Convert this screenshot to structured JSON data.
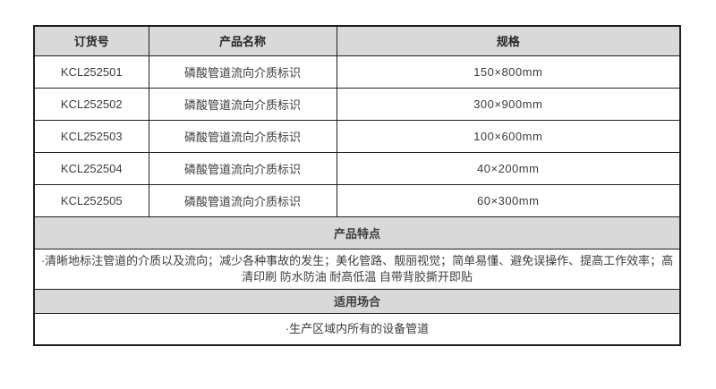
{
  "colors": {
    "section_header_bg": "#d9d9d9",
    "grid_border": "#1f1f1f",
    "text": "#3c3c3c"
  },
  "table": {
    "headers": {
      "order_no": "订货号",
      "product_name": "产品名称",
      "spec": "规格"
    },
    "rows": [
      {
        "order_no": "KCL252501",
        "product_name": "磷酸管道流向介质标识",
        "spec": "150×800mm"
      },
      {
        "order_no": "KCL252502",
        "product_name": "磷酸管道流向介质标识",
        "spec": "300×900mm"
      },
      {
        "order_no": "KCL252503",
        "product_name": "磷酸管道流向介质标识",
        "spec": "100×600mm"
      },
      {
        "order_no": "KCL252504",
        "product_name": "磷酸管道流向介质标识",
        "spec": "40×200mm"
      },
      {
        "order_no": "KCL252505",
        "product_name": "磷酸管道流向介质标识",
        "spec": "60×300mm"
      }
    ],
    "features_section": {
      "title": "产品特点",
      "text": "·清晰地标注管道的介质以及流向；减少各种事故的发生；美化管路、靓丽视觉；简单易懂、避免误操作、提高工作效率；高清印刷 防水防油 耐高低温 自带背胶撕开即贴"
    },
    "usage_section": {
      "title": "适用场合",
      "text": "·生产区域内所有的设备管道"
    }
  }
}
